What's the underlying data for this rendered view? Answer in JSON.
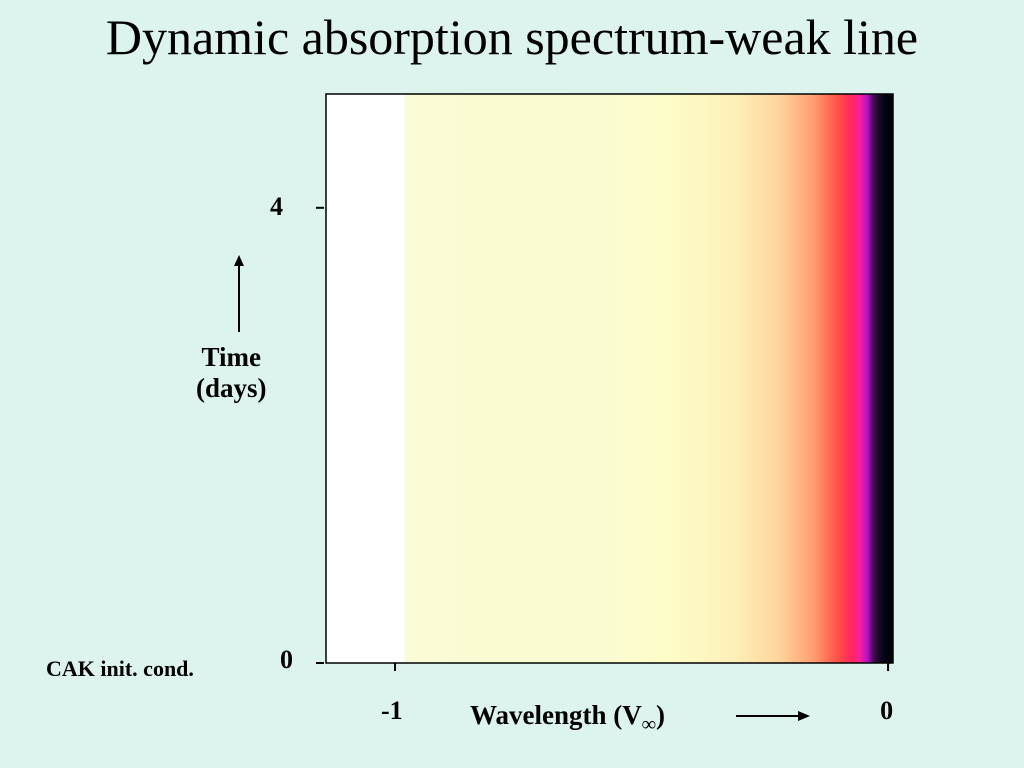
{
  "slide": {
    "title": "Dynamic absorption spectrum-weak line"
  },
  "annotations": {
    "initial_condition": "CAK init. cond."
  },
  "colors": {
    "background": "#dcf3ee",
    "plot_border": "#000000"
  },
  "chart_data": {
    "type": "heatmap",
    "title": "Dynamic absorption spectrum-weak line",
    "xlabel_main": "Wavelength (V",
    "xlabel_symbol": "∞",
    "xlabel_close": ")",
    "ylabel_line1": "Time",
    "ylabel_line2": "(days)",
    "xlim": [
      -1.14,
      0.01
    ],
    "ylim": [
      0,
      5.0
    ],
    "x_ticks": [
      {
        "value": -1,
        "label": "-1"
      },
      {
        "value": 0,
        "label": "0"
      }
    ],
    "y_ticks": [
      {
        "value": 0,
        "label": "0"
      },
      {
        "value": 4,
        "label": "4"
      }
    ],
    "colormap": "white-yellow-orange-red-magenta-black (higher absorption darker)",
    "absorption_profile": {
      "x": [
        -1.14,
        -1.0,
        -0.8,
        -0.6,
        -0.4,
        -0.3,
        -0.2,
        -0.12,
        -0.08,
        -0.05,
        -0.035,
        -0.02,
        -0.01,
        0.0
      ],
      "absorption": [
        0.0,
        0.05,
        0.1,
        0.12,
        0.15,
        0.22,
        0.35,
        0.5,
        0.65,
        0.8,
        0.88,
        0.95,
        1.0,
        1.0
      ]
    },
    "time_variability": "none (constant over time)"
  }
}
